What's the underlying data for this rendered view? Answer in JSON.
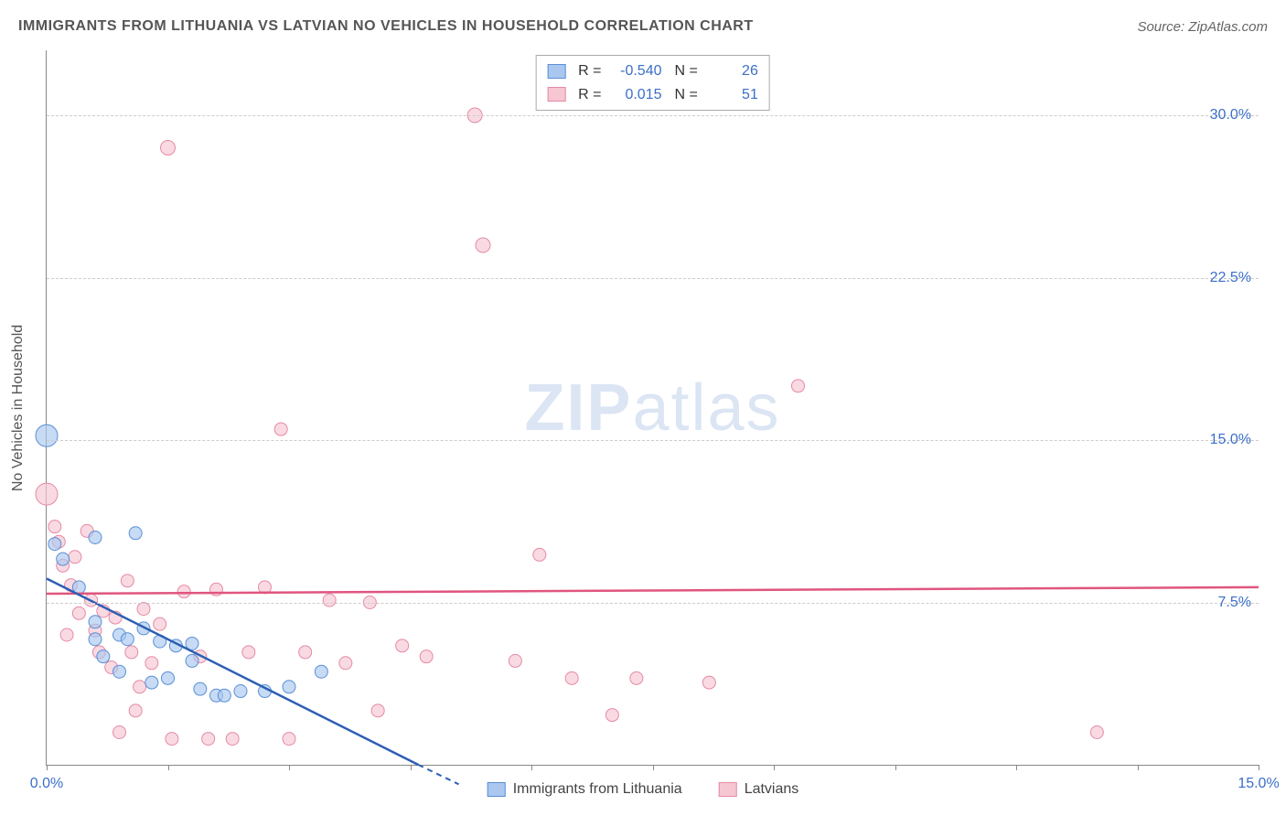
{
  "title": "IMMIGRANTS FROM LITHUANIA VS LATVIAN NO VEHICLES IN HOUSEHOLD CORRELATION CHART",
  "source": "Source: ZipAtlas.com",
  "watermark_a": "ZIP",
  "watermark_b": "atlas",
  "y_axis_label": "No Vehicles in Household",
  "series": {
    "blue": {
      "label": "Immigrants from Lithuania",
      "fill": "#a9c7ef",
      "stroke": "#5b8fd6",
      "line_stroke": "#2c5fb3",
      "R": "-0.540",
      "N": "26",
      "trend": {
        "x1": 0.0,
        "y1": 8.6,
        "x2": 4.6,
        "y2": 0.0
      },
      "trend_ext": {
        "x1": 4.6,
        "y1": 0.0,
        "x2": 5.1,
        "y2": -0.9
      },
      "points": [
        {
          "x": 0.0,
          "y": 15.2,
          "r": 12
        },
        {
          "x": 0.1,
          "y": 10.2,
          "r": 7
        },
        {
          "x": 0.2,
          "y": 9.5,
          "r": 7
        },
        {
          "x": 0.6,
          "y": 10.5,
          "r": 7
        },
        {
          "x": 1.1,
          "y": 10.7,
          "r": 7
        },
        {
          "x": 0.4,
          "y": 8.2,
          "r": 7
        },
        {
          "x": 0.6,
          "y": 6.6,
          "r": 7
        },
        {
          "x": 0.6,
          "y": 5.8,
          "r": 7
        },
        {
          "x": 0.7,
          "y": 5.0,
          "r": 7
        },
        {
          "x": 0.9,
          "y": 6.0,
          "r": 7
        },
        {
          "x": 0.9,
          "y": 4.3,
          "r": 7
        },
        {
          "x": 1.0,
          "y": 5.8,
          "r": 7
        },
        {
          "x": 1.2,
          "y": 6.3,
          "r": 7
        },
        {
          "x": 1.4,
          "y": 5.7,
          "r": 7
        },
        {
          "x": 1.5,
          "y": 4.0,
          "r": 7
        },
        {
          "x": 1.6,
          "y": 5.5,
          "r": 7
        },
        {
          "x": 1.8,
          "y": 5.6,
          "r": 7
        },
        {
          "x": 1.9,
          "y": 3.5,
          "r": 7
        },
        {
          "x": 2.1,
          "y": 3.2,
          "r": 7
        },
        {
          "x": 2.2,
          "y": 3.2,
          "r": 7
        },
        {
          "x": 2.4,
          "y": 3.4,
          "r": 7
        },
        {
          "x": 2.7,
          "y": 3.4,
          "r": 7
        },
        {
          "x": 3.0,
          "y": 3.6,
          "r": 7
        },
        {
          "x": 3.4,
          "y": 4.3,
          "r": 7
        },
        {
          "x": 1.3,
          "y": 3.8,
          "r": 7
        },
        {
          "x": 1.8,
          "y": 4.8,
          "r": 7
        }
      ]
    },
    "pink": {
      "label": "Latvians",
      "fill": "#f6c6d3",
      "stroke": "#e68aa4",
      "line_stroke": "#e0557f",
      "R": "0.015",
      "N": "51",
      "trend": {
        "x1": 0.0,
        "y1": 7.9,
        "x2": 15.0,
        "y2": 8.2
      },
      "points": [
        {
          "x": 0.0,
          "y": 12.5,
          "r": 12
        },
        {
          "x": 0.1,
          "y": 11.0,
          "r": 7
        },
        {
          "x": 0.15,
          "y": 10.3,
          "r": 7
        },
        {
          "x": 0.2,
          "y": 9.2,
          "r": 7
        },
        {
          "x": 0.3,
          "y": 8.3,
          "r": 7
        },
        {
          "x": 0.35,
          "y": 9.6,
          "r": 7
        },
        {
          "x": 0.4,
          "y": 7.0,
          "r": 7
        },
        {
          "x": 0.5,
          "y": 10.8,
          "r": 7
        },
        {
          "x": 0.55,
          "y": 7.6,
          "r": 7
        },
        {
          "x": 0.6,
          "y": 6.2,
          "r": 7
        },
        {
          "x": 0.65,
          "y": 5.2,
          "r": 7
        },
        {
          "x": 0.7,
          "y": 7.1,
          "r": 7
        },
        {
          "x": 0.8,
          "y": 4.5,
          "r": 7
        },
        {
          "x": 0.85,
          "y": 6.8,
          "r": 7
        },
        {
          "x": 0.9,
          "y": 1.5,
          "r": 7
        },
        {
          "x": 1.0,
          "y": 8.5,
          "r": 7
        },
        {
          "x": 1.05,
          "y": 5.2,
          "r": 7
        },
        {
          "x": 1.1,
          "y": 2.5,
          "r": 7
        },
        {
          "x": 1.2,
          "y": 7.2,
          "r": 7
        },
        {
          "x": 1.3,
          "y": 4.7,
          "r": 7
        },
        {
          "x": 1.4,
          "y": 6.5,
          "r": 7
        },
        {
          "x": 1.5,
          "y": 28.5,
          "r": 8
        },
        {
          "x": 1.55,
          "y": 1.2,
          "r": 7
        },
        {
          "x": 1.7,
          "y": 8.0,
          "r": 7
        },
        {
          "x": 1.9,
          "y": 5.0,
          "r": 7
        },
        {
          "x": 2.0,
          "y": 1.2,
          "r": 7
        },
        {
          "x": 2.1,
          "y": 8.1,
          "r": 7
        },
        {
          "x": 2.3,
          "y": 1.2,
          "r": 7
        },
        {
          "x": 2.5,
          "y": 5.2,
          "r": 7
        },
        {
          "x": 2.7,
          "y": 8.2,
          "r": 7
        },
        {
          "x": 2.9,
          "y": 15.5,
          "r": 7
        },
        {
          "x": 3.0,
          "y": 1.2,
          "r": 7
        },
        {
          "x": 3.2,
          "y": 5.2,
          "r": 7
        },
        {
          "x": 3.5,
          "y": 7.6,
          "r": 7
        },
        {
          "x": 3.7,
          "y": 4.7,
          "r": 7
        },
        {
          "x": 4.0,
          "y": 7.5,
          "r": 7
        },
        {
          "x": 4.1,
          "y": 2.5,
          "r": 7
        },
        {
          "x": 4.4,
          "y": 5.5,
          "r": 7
        },
        {
          "x": 4.7,
          "y": 5.0,
          "r": 7
        },
        {
          "x": 5.3,
          "y": 30.0,
          "r": 8
        },
        {
          "x": 5.4,
          "y": 24.0,
          "r": 8
        },
        {
          "x": 5.8,
          "y": 4.8,
          "r": 7
        },
        {
          "x": 6.1,
          "y": 9.7,
          "r": 7
        },
        {
          "x": 6.5,
          "y": 4.0,
          "r": 7
        },
        {
          "x": 7.0,
          "y": 2.3,
          "r": 7
        },
        {
          "x": 7.3,
          "y": 4.0,
          "r": 7
        },
        {
          "x": 8.2,
          "y": 3.8,
          "r": 7
        },
        {
          "x": 9.3,
          "y": 17.5,
          "r": 7
        },
        {
          "x": 13.0,
          "y": 1.5,
          "r": 7
        },
        {
          "x": 1.15,
          "y": 3.6,
          "r": 7
        },
        {
          "x": 0.25,
          "y": 6.0,
          "r": 7
        }
      ]
    }
  },
  "axes": {
    "xlim": [
      0,
      15
    ],
    "ylim": [
      0,
      33
    ],
    "yticks": [
      {
        "v": 7.5,
        "label": "7.5%"
      },
      {
        "v": 15.0,
        "label": "15.0%"
      },
      {
        "v": 22.5,
        "label": "22.5%"
      },
      {
        "v": 30.0,
        "label": "30.0%"
      }
    ],
    "xticks": [
      0,
      1.5,
      3.0,
      4.5,
      6.0,
      7.5,
      9.0,
      10.5,
      12.0,
      13.5,
      15.0
    ],
    "xtick_labels": [
      {
        "v": 0.0,
        "label": "0.0%"
      },
      {
        "v": 15.0,
        "label": "15.0%"
      }
    ]
  },
  "colors": {
    "grid": "#cccccc",
    "axis": "#888888",
    "tick_text": "#3b6fc9",
    "background": "#ffffff"
  }
}
